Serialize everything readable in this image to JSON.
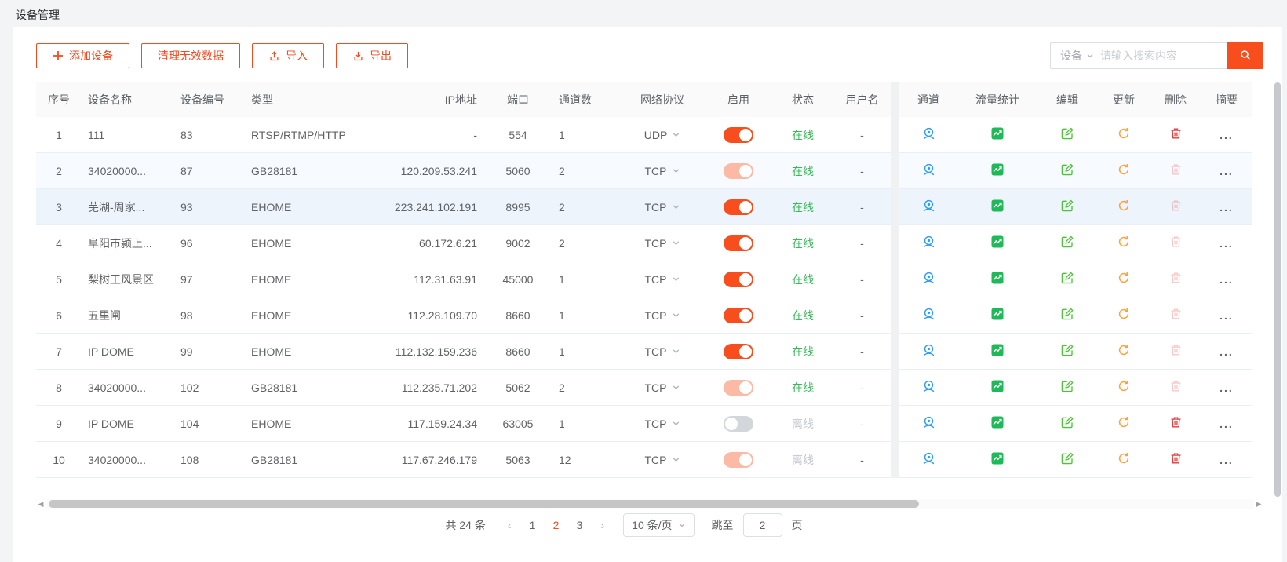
{
  "page": {
    "title": "设备管理"
  },
  "toolbar": {
    "buttons": [
      {
        "label": "添加设备",
        "icon": "plus-icon"
      },
      {
        "label": "清理无效数据",
        "icon": null
      },
      {
        "label": "导入",
        "icon": "upload-icon"
      },
      {
        "label": "导出",
        "icon": "download-icon"
      }
    ]
  },
  "search": {
    "filter_label": "设备",
    "placeholder": "请输入搜索内容",
    "button_icon": "search-icon"
  },
  "table": {
    "columns": [
      "序号",
      "设备名称",
      "设备编号",
      "类型",
      "IP地址",
      "端口",
      "通道数",
      "网络协议",
      "启用",
      "状态",
      "用户名"
    ],
    "action_columns": [
      "通道",
      "流量统计",
      "编辑",
      "更新",
      "删除",
      "摘要"
    ],
    "action_icons": [
      "webcam-icon",
      "traffic-chart-icon",
      "edit-icon",
      "refresh-icon",
      "trash-icon",
      "ellipsis-icon"
    ],
    "summary_text": "...",
    "rows": [
      {
        "no": "1",
        "name": "111",
        "code": "83",
        "type": "RTSP/RTMP/HTTP",
        "ip": "-",
        "port": "554",
        "channels": "1",
        "protocol": "UDP",
        "enabled": "on",
        "status": "在线",
        "username": "-",
        "delete_state": "enabled",
        "highlight": "none"
      },
      {
        "no": "2",
        "name": "34020000...",
        "code": "87",
        "type": "GB28181",
        "ip": "120.209.53.241",
        "port": "5060",
        "channels": "2",
        "protocol": "TCP",
        "enabled": "faded",
        "status": "在线",
        "username": "-",
        "delete_state": "disabled",
        "highlight": "hl1"
      },
      {
        "no": "3",
        "name": "芜湖-周家...",
        "code": "93",
        "type": "EHOME",
        "ip": "223.241.102.191",
        "port": "8995",
        "channels": "2",
        "protocol": "TCP",
        "enabled": "on",
        "status": "在线",
        "username": "-",
        "delete_state": "disabled",
        "highlight": "hl2"
      },
      {
        "no": "4",
        "name": "阜阳市颍上...",
        "code": "96",
        "type": "EHOME",
        "ip": "60.172.6.21",
        "port": "9002",
        "channels": "2",
        "protocol": "TCP",
        "enabled": "on",
        "status": "在线",
        "username": "-",
        "delete_state": "disabled",
        "highlight": "none"
      },
      {
        "no": "5",
        "name": "梨树王风景区",
        "code": "97",
        "type": "EHOME",
        "ip": "112.31.63.91",
        "port": "45000",
        "channels": "1",
        "protocol": "TCP",
        "enabled": "on",
        "status": "在线",
        "username": "-",
        "delete_state": "disabled",
        "highlight": "none"
      },
      {
        "no": "6",
        "name": "五里闸",
        "code": "98",
        "type": "EHOME",
        "ip": "112.28.109.70",
        "port": "8660",
        "channels": "1",
        "protocol": "TCP",
        "enabled": "on",
        "status": "在线",
        "username": "-",
        "delete_state": "disabled",
        "highlight": "none"
      },
      {
        "no": "7",
        "name": "IP DOME",
        "code": "99",
        "type": "EHOME",
        "ip": "112.132.159.236",
        "port": "8660",
        "channels": "1",
        "protocol": "TCP",
        "enabled": "on",
        "status": "在线",
        "username": "-",
        "delete_state": "disabled",
        "highlight": "none"
      },
      {
        "no": "8",
        "name": "34020000...",
        "code": "102",
        "type": "GB28181",
        "ip": "112.235.71.202",
        "port": "5062",
        "channels": "2",
        "protocol": "TCP",
        "enabled": "faded",
        "status": "在线",
        "username": "-",
        "delete_state": "disabled",
        "highlight": "none"
      },
      {
        "no": "9",
        "name": "IP DOME",
        "code": "104",
        "type": "EHOME",
        "ip": "117.159.24.34",
        "port": "63005",
        "channels": "1",
        "protocol": "TCP",
        "enabled": "off",
        "status": "离线",
        "username": "-",
        "delete_state": "enabled",
        "highlight": "none"
      },
      {
        "no": "10",
        "name": "34020000...",
        "code": "108",
        "type": "GB28181",
        "ip": "117.67.246.179",
        "port": "5063",
        "channels": "12",
        "protocol": "TCP",
        "enabled": "faded",
        "status": "离线",
        "username": "-",
        "delete_state": "enabled",
        "highlight": "none"
      }
    ]
  },
  "pagination": {
    "total_text": "共 24 条",
    "prev_icon": "chevron-left-icon",
    "next_icon": "chevron-right-icon",
    "pages": [
      "1",
      "2",
      "3"
    ],
    "current_page": "2",
    "page_size": "10 条/页",
    "jump_label": "跳至",
    "jump_value": "2",
    "page_suffix": "页"
  },
  "colors": {
    "accent": "#f84e1d",
    "online": "#3cb95c",
    "offline": "#c3c7ce",
    "channel_icon": "#2d9cf4",
    "traffic_icon": "#1eba58",
    "edit_icon": "#4bc436",
    "refresh_icon": "#ffa23e",
    "delete_icon": "#e23b3b"
  }
}
